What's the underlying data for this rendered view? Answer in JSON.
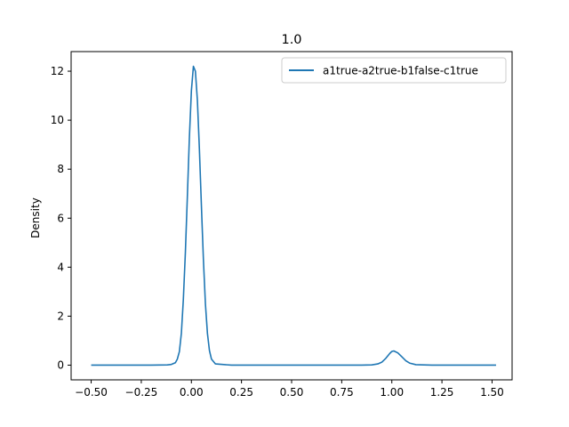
{
  "chart_data": {
    "type": "line",
    "title": "1.0",
    "xlabel": "",
    "ylabel": "Density",
    "xlim": [
      -0.6,
      1.6
    ],
    "ylim": [
      -0.6,
      12.8
    ],
    "xticks": [
      -0.5,
      -0.25,
      0.0,
      0.25,
      0.5,
      0.75,
      1.0,
      1.25,
      1.5
    ],
    "xtick_labels": [
      "−0.50",
      "−0.25",
      "0.00",
      "0.25",
      "0.50",
      "0.75",
      "1.00",
      "1.25",
      "1.50"
    ],
    "yticks": [
      0,
      2,
      4,
      6,
      8,
      10,
      12
    ],
    "ytick_labels": [
      "0",
      "2",
      "4",
      "6",
      "8",
      "10",
      "12"
    ],
    "grid": false,
    "legend_position": "top-right",
    "series": [
      {
        "name": "a1true-a2true-b1false-c1true",
        "color": "#1f77b4",
        "x": [
          -0.5,
          -0.2,
          -0.12,
          -0.1,
          -0.08,
          -0.07,
          -0.06,
          -0.05,
          -0.04,
          -0.03,
          -0.02,
          -0.01,
          0.0,
          0.01,
          0.02,
          0.03,
          0.04,
          0.05,
          0.06,
          0.07,
          0.08,
          0.09,
          0.1,
          0.12,
          0.2,
          0.5,
          0.85,
          0.9,
          0.93,
          0.95,
          0.97,
          0.99,
          1.0,
          1.01,
          1.03,
          1.05,
          1.07,
          1.09,
          1.12,
          1.2,
          1.52
        ],
        "y": [
          0.0,
          0.0,
          0.01,
          0.03,
          0.1,
          0.25,
          0.55,
          1.3,
          2.7,
          4.6,
          6.9,
          9.3,
          11.2,
          12.2,
          12.0,
          10.8,
          8.8,
          6.5,
          4.3,
          2.5,
          1.3,
          0.6,
          0.25,
          0.05,
          0.0,
          0.0,
          0.0,
          0.01,
          0.05,
          0.12,
          0.28,
          0.48,
          0.56,
          0.58,
          0.5,
          0.34,
          0.18,
          0.08,
          0.02,
          0.0,
          0.0
        ]
      }
    ]
  }
}
